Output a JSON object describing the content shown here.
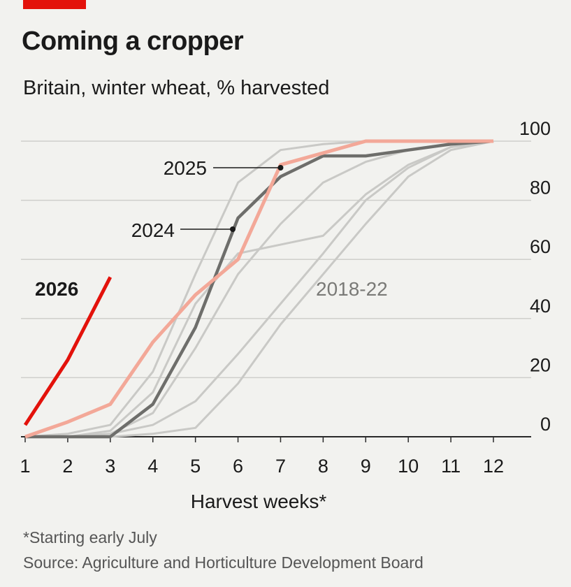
{
  "header": {
    "accent_color": "#e3120b",
    "title": "Coming a cropper",
    "subtitle": "Britain, winter wheat, % harvested"
  },
  "footer": {
    "note": "*Starting early July",
    "source": "Source: Agriculture and Horticulture Development Board"
  },
  "chart_data": {
    "type": "line",
    "title": "Coming a cropper",
    "subtitle": "Britain, winter wheat, % harvested",
    "xlabel": "Harvest weeks*",
    "ylabel": "",
    "xlim": [
      1,
      12
    ],
    "ylim": [
      0,
      100
    ],
    "x_ticks": [
      1,
      2,
      3,
      4,
      5,
      6,
      7,
      8,
      9,
      10,
      11,
      12
    ],
    "y_ticks": [
      0,
      20,
      40,
      60,
      80,
      100
    ],
    "y_axis_side": "right",
    "grid": true,
    "legend": "direct labels on lines",
    "series": [
      {
        "name": "2018-22",
        "color": "#c9c9c6",
        "x": [
          1,
          2,
          3,
          4,
          5,
          6,
          7,
          8,
          9,
          10,
          11,
          12
        ],
        "y": [
          0,
          0,
          1,
          4,
          12,
          28,
          45,
          62,
          80,
          91,
          98,
          100
        ]
      },
      {
        "name": "",
        "color": "#c9c9c6",
        "x": [
          1,
          2,
          3,
          4,
          5,
          6,
          7,
          8,
          9,
          10,
          11,
          12
        ],
        "y": [
          0,
          0,
          0,
          1,
          3,
          18,
          38,
          55,
          72,
          88,
          97,
          100
        ]
      },
      {
        "name": "",
        "color": "#c9c9c6",
        "x": [
          1,
          2,
          3,
          4,
          5,
          6,
          7,
          8,
          9,
          10,
          11,
          12
        ],
        "y": [
          0,
          0,
          2,
          15,
          45,
          62,
          65,
          68,
          82,
          92,
          98,
          100
        ]
      },
      {
        "name": "",
        "color": "#c9c9c6",
        "x": [
          1,
          2,
          3,
          4,
          5,
          6,
          7,
          8,
          9,
          10,
          11,
          12
        ],
        "y": [
          0,
          1,
          4,
          22,
          55,
          86,
          97,
          99,
          100,
          100,
          100,
          100
        ]
      },
      {
        "name": "",
        "color": "#c9c9c6",
        "x": [
          1,
          2,
          3,
          4,
          5,
          6,
          7,
          8,
          9,
          10,
          11,
          12
        ],
        "y": [
          0,
          0,
          1,
          8,
          30,
          55,
          72,
          86,
          93,
          97,
          99,
          100
        ]
      },
      {
        "name": "2024",
        "color": "#6e6e6b",
        "x": [
          1,
          2,
          3,
          4,
          5,
          6,
          7,
          8,
          9,
          10,
          11,
          12
        ],
        "y": [
          0,
          0,
          0,
          11,
          37,
          74,
          88,
          95,
          95,
          97,
          99,
          100
        ]
      },
      {
        "name": "2025",
        "color": "#f3a898",
        "x": [
          1,
          2,
          3,
          4,
          5,
          6,
          7,
          8,
          9,
          10,
          11,
          12
        ],
        "y": [
          0,
          5,
          11,
          32,
          48,
          60,
          92,
          96,
          100,
          100,
          100,
          100
        ]
      },
      {
        "name": "2026",
        "color": "#e3120b",
        "x": [
          1,
          2,
          3
        ],
        "y": [
          4,
          26,
          54
        ]
      }
    ],
    "annotations": [
      {
        "text": "2025",
        "x": 7,
        "y": 90
      },
      {
        "text": "2024",
        "x": 6,
        "y": 70
      },
      {
        "text": "2018-22",
        "x": 9,
        "y": 45
      },
      {
        "text": "2026",
        "x": 2,
        "y": 50
      }
    ]
  }
}
